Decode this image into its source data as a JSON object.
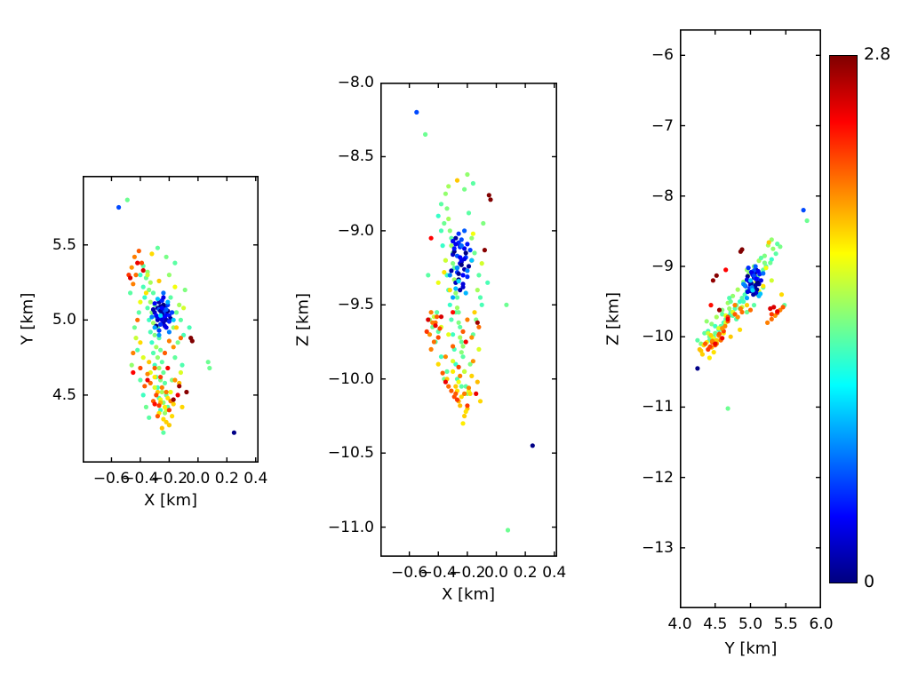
{
  "figure": {
    "background": "#ffffff"
  },
  "chart_data": {
    "type": "scatter",
    "description_title": "",
    "colormap": "jet",
    "point_fields": [
      "x_km",
      "y_km",
      "z_km",
      "value"
    ],
    "panels": [
      {
        "id": "xy",
        "xlabel": "X [km]",
        "ylabel": "Y [km]",
        "xlim": [
          -0.8,
          0.42
        ],
        "ylim": [
          4.05,
          5.96
        ],
        "xticks": [
          -0.6,
          -0.4,
          -0.2,
          0.0,
          0.2,
          0.4
        ],
        "xtick_labels": [
          "−0.6",
          "−0.4",
          "−0.2",
          "0.0",
          "0.2",
          "0.4"
        ],
        "yticks": [
          5.5,
          5.0,
          4.5
        ],
        "ytick_labels": [
          "5.5",
          "5.0",
          "4.5"
        ],
        "x_index": 0,
        "y_index": 1
      },
      {
        "id": "xz",
        "xlabel": "X [km]",
        "ylabel": "Z [km]",
        "xlim": [
          -0.8,
          0.42
        ],
        "ylim": [
          -11.2,
          -8.0
        ],
        "xticks": [
          -0.6,
          -0.4,
          -0.2,
          0.0,
          0.2,
          0.4
        ],
        "xtick_labels": [
          "−0.6",
          "−0.4",
          "−0.2",
          "0.0",
          "0.2",
          "0.4"
        ],
        "yticks": [
          -8.0,
          -8.5,
          -9.0,
          -9.5,
          -10.0,
          -10.5,
          -11.0
        ],
        "ytick_labels": [
          "−8.0",
          "−8.5",
          "−9.0",
          "−9.5",
          "−10.0",
          "−10.5",
          "−11.0"
        ],
        "x_index": 0,
        "y_index": 2
      },
      {
        "id": "yz",
        "xlabel": "Y [km]",
        "ylabel": "Z [km]",
        "xlim": [
          4.0,
          6.0
        ],
        "ylim": [
          -13.86,
          -5.63
        ],
        "xticks": [
          4.0,
          4.5,
          5.0,
          5.5,
          6.0
        ],
        "xtick_labels": [
          "4.0",
          "4.5",
          "5.0",
          "5.5",
          "6.0"
        ],
        "yticks": [
          -6,
          -7,
          -8,
          -9,
          -10,
          -11,
          -12,
          -13
        ],
        "ytick_labels": [
          "−6",
          "−7",
          "−8",
          "−9",
          "−10",
          "−11",
          "−12",
          "−13"
        ],
        "x_index": 1,
        "y_index": 2
      }
    ],
    "colorbar": {
      "min_label": "0",
      "max_label": "2.8",
      "vmin": 0,
      "vmax": 2.8,
      "bottom_color": "#000080",
      "top_color": "#800000"
    },
    "points": [
      [
        -0.38,
        5.36,
        -8.82,
        1.3
      ],
      [
        -0.35,
        5.32,
        -8.75,
        1.45
      ],
      [
        -0.4,
        5.3,
        -8.9,
        1.2
      ],
      [
        -0.36,
        5.28,
        -8.95,
        1.35
      ],
      [
        -0.33,
        5.25,
        -8.7,
        1.5
      ],
      [
        -0.38,
        5.22,
        -9.0,
        1.25
      ],
      [
        -0.34,
        5.2,
        -8.85,
        1.4
      ],
      [
        -0.31,
        5.18,
        -9.05,
        1.3
      ],
      [
        -0.37,
        5.15,
        -9.1,
        1.2
      ],
      [
        -0.33,
        5.12,
        -8.92,
        1.5
      ],
      [
        -0.3,
        5.1,
        -9.15,
        1.35
      ],
      [
        -0.35,
        5.08,
        -9.2,
        1.28
      ],
      [
        -0.32,
        5.05,
        -9.0,
        1.42
      ],
      [
        -0.29,
        5.02,
        -9.25,
        1.3
      ],
      [
        -0.34,
        5.0,
        -9.3,
        1.22
      ],
      [
        -0.31,
        4.98,
        -9.1,
        1.48
      ],
      [
        -0.28,
        4.95,
        -9.35,
        1.33
      ],
      [
        -0.33,
        4.92,
        -9.4,
        1.25
      ],
      [
        -0.3,
        4.9,
        -9.22,
        1.4
      ],
      [
        -0.27,
        4.88,
        -9.45,
        1.3
      ],
      [
        -0.32,
        4.85,
        -9.5,
        1.2
      ],
      [
        -0.29,
        4.82,
        -9.33,
        1.5
      ],
      [
        -0.26,
        4.8,
        -9.55,
        1.35
      ],
      [
        -0.31,
        4.78,
        -9.6,
        1.27
      ],
      [
        -0.28,
        4.75,
        -9.42,
        1.45
      ],
      [
        -0.25,
        4.72,
        -9.65,
        1.3
      ],
      [
        -0.3,
        4.7,
        -9.7,
        1.22
      ],
      [
        -0.27,
        4.68,
        -9.52,
        1.48
      ],
      [
        -0.24,
        4.65,
        -9.75,
        1.33
      ],
      [
        -0.29,
        4.62,
        -9.8,
        1.25
      ],
      [
        -0.26,
        4.6,
        -9.62,
        1.4
      ],
      [
        -0.23,
        4.58,
        -9.85,
        1.3
      ],
      [
        -0.28,
        4.55,
        -9.9,
        1.2
      ],
      [
        -0.25,
        4.52,
        -9.72,
        1.5
      ],
      [
        -0.22,
        4.5,
        -9.95,
        1.35
      ],
      [
        -0.27,
        4.48,
        -10.0,
        1.28
      ],
      [
        -0.24,
        4.45,
        -9.82,
        1.42
      ],
      [
        -0.21,
        4.42,
        -10.05,
        1.3
      ],
      [
        -0.26,
        4.4,
        -9.92,
        1.22
      ],
      [
        -0.23,
        4.38,
        -9.78,
        1.45
      ],
      [
        -0.15,
        5.05,
        -9.15,
        1.35
      ],
      [
        -0.12,
        5.0,
        -9.3,
        1.3
      ],
      [
        -0.17,
        4.95,
        -9.05,
        1.45
      ],
      [
        -0.1,
        4.9,
        -9.5,
        1.25
      ],
      [
        -0.14,
        4.85,
        -9.6,
        1.38
      ],
      [
        -0.19,
        5.15,
        -8.88,
        1.3
      ],
      [
        -0.13,
        5.1,
        -9.4,
        1.5
      ],
      [
        -0.16,
        4.75,
        -9.7,
        1.32
      ],
      [
        -0.11,
        4.7,
        -9.45,
        1.27
      ],
      [
        -0.18,
        4.6,
        -9.9,
        1.4
      ],
      [
        -0.41,
        5.05,
        -9.55,
        1.3
      ],
      [
        -0.44,
        4.95,
        -9.65,
        1.35
      ],
      [
        -0.42,
        4.8,
        -9.75,
        1.28
      ],
      [
        -0.46,
        4.7,
        -9.6,
        1.45
      ],
      [
        -0.4,
        4.6,
        -9.68,
        1.3
      ],
      [
        -0.38,
        4.5,
        -9.85,
        1.22
      ],
      [
        -0.36,
        4.42,
        -10.0,
        1.35
      ],
      [
        -0.34,
        4.35,
        -9.95,
        1.3
      ],
      [
        -0.2,
        4.3,
        -10.1,
        1.42
      ],
      [
        -0.24,
        4.25,
        -10.05,
        1.3
      ],
      [
        0.07,
        4.72,
        -9.5,
        1.35
      ],
      [
        -0.47,
        5.18,
        -9.3,
        1.3
      ],
      [
        -0.09,
        5.2,
        -8.95,
        1.4
      ],
      [
        -0.06,
        4.95,
        -9.35,
        1.25
      ],
      [
        -0.2,
        5.3,
        -8.62,
        1.45
      ],
      [
        -0.16,
        5.38,
        -8.68,
        1.3
      ],
      [
        -0.22,
        5.42,
        -8.72,
        1.38
      ],
      [
        -0.28,
        5.48,
        -9.55,
        1.32
      ],
      [
        -0.3,
        4.55,
        -9.88,
        1.65
      ],
      [
        -0.26,
        4.47,
        -10.02,
        1.7
      ],
      [
        -0.22,
        4.4,
        -9.95,
        1.6
      ],
      [
        -0.33,
        4.65,
        -9.7,
        1.68
      ],
      [
        -0.35,
        5.3,
        -9.2,
        1.62
      ],
      [
        -0.4,
        5.12,
        -9.35,
        1.7
      ],
      [
        -0.12,
        4.65,
        -9.8,
        1.65
      ],
      [
        -0.16,
        5.22,
        -9.02,
        1.72
      ],
      [
        -0.43,
        4.88,
        -9.58,
        1.6
      ],
      [
        -0.19,
        4.52,
        -10.08,
        1.7
      ],
      [
        -0.38,
        4.75,
        -9.65,
        1.66
      ],
      [
        -0.1,
        5.08,
        -9.22,
        1.63
      ],
      [
        -0.24,
        4.34,
        -10.12,
        1.85
      ],
      [
        -0.2,
        4.3,
        -10.2,
        1.9
      ],
      [
        -0.27,
        4.38,
        -10.08,
        1.82
      ],
      [
        -0.22,
        4.32,
        -10.25,
        1.88
      ],
      [
        -0.25,
        4.28,
        -10.18,
        1.92
      ],
      [
        -0.18,
        4.36,
        -10.1,
        1.85
      ],
      [
        -0.23,
        4.42,
        -10.3,
        1.8
      ],
      [
        -0.26,
        4.45,
        -10.15,
        1.95
      ],
      [
        -0.21,
        4.48,
        -10.22,
        1.83
      ],
      [
        -0.28,
        4.52,
        -10.05,
        1.9
      ],
      [
        -0.17,
        4.44,
        -9.98,
        1.87
      ],
      [
        -0.3,
        4.62,
        -9.95,
        1.8
      ],
      [
        -0.13,
        4.58,
        -10.02,
        1.93
      ],
      [
        -0.32,
        5.44,
        -9.4,
        1.85
      ],
      [
        -0.27,
        5.26,
        -8.66,
        1.9
      ],
      [
        -0.36,
        5.18,
        -9.28,
        1.82
      ],
      [
        -0.15,
        4.95,
        -9.55,
        1.88
      ],
      [
        -0.4,
        4.85,
        -9.9,
        1.85
      ],
      [
        -0.34,
        4.72,
        -10.0,
        1.9
      ],
      [
        -0.11,
        4.42,
        -10.15,
        1.86
      ],
      [
        -0.44,
        5.42,
        -9.62,
        2.1
      ],
      [
        -0.41,
        5.46,
        -9.58,
        2.2
      ],
      [
        -0.46,
        5.35,
        -9.7,
        2.05
      ],
      [
        -0.43,
        5.3,
        -9.75,
        2.15
      ],
      [
        -0.39,
        5.38,
        -9.66,
        2.25
      ],
      [
        -0.45,
        5.24,
        -9.8,
        2.1
      ],
      [
        -0.48,
        5.3,
        -9.68,
        2.3
      ],
      [
        -0.2,
        4.86,
        -9.6,
        2.1
      ],
      [
        -0.23,
        4.78,
        -9.68,
        2.2
      ],
      [
        -0.17,
        4.82,
        -9.72,
        2.05
      ],
      [
        -0.33,
        4.58,
        -10.05,
        2.15
      ],
      [
        -0.29,
        4.5,
        -10.12,
        2.25
      ],
      [
        -0.25,
        4.55,
        -9.98,
        2.1
      ],
      [
        -0.31,
        4.46,
        -10.08,
        2.2
      ],
      [
        -0.27,
        4.43,
        -10.14,
        2.3
      ],
      [
        -0.22,
        4.52,
        -10.1,
        2.12
      ],
      [
        -0.35,
        4.64,
        -9.85,
        2.08
      ],
      [
        -0.3,
        4.68,
        -9.78,
        2.18
      ],
      [
        -0.26,
        4.62,
        -9.92,
        2.28
      ],
      [
        -0.19,
        4.46,
        -10.06,
        2.1
      ],
      [
        -0.37,
        4.56,
        -9.96,
        2.2
      ],
      [
        -0.16,
        4.6,
        -9.88,
        2.05
      ],
      [
        -0.42,
        5.0,
        -9.62,
        2.15
      ],
      [
        -0.45,
        4.78,
        -9.55,
        2.1
      ],
      [
        -0.4,
        4.68,
        -9.72,
        2.25
      ],
      [
        -0.12,
        4.88,
        -9.65,
        2.15
      ],
      [
        -0.2,
        4.4,
        -10.18,
        2.3
      ],
      [
        -0.28,
        4.36,
        -10.1,
        2.2
      ],
      [
        -0.42,
        5.38,
        -9.64,
        2.5
      ],
      [
        -0.38,
        5.33,
        -9.58,
        2.55
      ],
      [
        -0.45,
        4.65,
        -9.05,
        2.45
      ],
      [
        -0.35,
        4.6,
        -10.02,
        2.5
      ],
      [
        -0.3,
        4.44,
        -9.55,
        2.42
      ],
      [
        -0.47,
        5.28,
        -9.6,
        2.55
      ],
      [
        -0.21,
        4.68,
        -9.75,
        2.48
      ],
      [
        -0.14,
        4.5,
        -10.1,
        2.5
      ],
      [
        -0.05,
        4.88,
        -8.76,
        2.8
      ],
      [
        -0.04,
        4.86,
        -8.79,
        2.8
      ],
      [
        -0.08,
        4.52,
        -9.13,
        2.78
      ],
      [
        -0.17,
        4.47,
        -9.2,
        2.75
      ],
      [
        -0.13,
        4.56,
        -9.62,
        2.72
      ],
      [
        -0.28,
        5.08,
        -9.05,
        0.1
      ],
      [
        -0.25,
        5.06,
        -9.1,
        0.05
      ],
      [
        -0.22,
        5.04,
        -9.12,
        0.3
      ],
      [
        -0.26,
        5.01,
        -9.08,
        0.45
      ],
      [
        -0.3,
        5.05,
        -9.16,
        0.2
      ],
      [
        -0.24,
        4.98,
        -9.21,
        0.15
      ],
      [
        -0.21,
        5.1,
        -9.18,
        0.5
      ],
      [
        -0.27,
        5.12,
        -9.25,
        0.1
      ],
      [
        -0.23,
        5.02,
        -9.3,
        0.35
      ],
      [
        -0.29,
        4.96,
        -9.14,
        0.0
      ],
      [
        -0.25,
        5.0,
        -9.22,
        0.25
      ],
      [
        -0.2,
        5.03,
        -9.09,
        0.4
      ],
      [
        -0.31,
        5.07,
        -9.27,
        0.12
      ],
      [
        -0.26,
        5.09,
        -9.33,
        0.05
      ],
      [
        -0.24,
        5.05,
        -9.06,
        0.55
      ],
      [
        -0.22,
        4.95,
        -9.19,
        0.3
      ],
      [
        -0.28,
        5.0,
        -9.35,
        0.18
      ],
      [
        -0.25,
        5.13,
        -9.11,
        0.42
      ],
      [
        -0.19,
        5.01,
        -9.24,
        0.08
      ],
      [
        -0.27,
        4.93,
        -9.28,
        0.5
      ],
      [
        -0.23,
        5.08,
        -9.38,
        0.22
      ],
      [
        -0.3,
        5.11,
        -9.07,
        0.33
      ],
      [
        -0.21,
        5.06,
        -9.15,
        0.02
      ],
      [
        -0.26,
        4.97,
        -9.02,
        0.48
      ],
      [
        -0.24,
        5.15,
        -9.2,
        0.28
      ],
      [
        -0.29,
        5.03,
        -9.12,
        0.38
      ],
      [
        -0.22,
        5.0,
        -9.26,
        0.15
      ],
      [
        -0.25,
        5.04,
        -9.4,
        0.1
      ],
      [
        -0.27,
        5.07,
        -9.17,
        0.58
      ],
      [
        -0.2,
        4.99,
        -9.31,
        0.45
      ],
      [
        -0.24,
        5.1,
        -9.23,
        0.0
      ],
      [
        -0.28,
        5.02,
        -9.09,
        0.3
      ],
      [
        -0.18,
        5.05,
        -9.13,
        0.52
      ],
      [
        -0.26,
        5.06,
        -9.29,
        0.07
      ],
      [
        -0.23,
        4.96,
        -9.36,
        0.25
      ],
      [
        -0.25,
        5.08,
        -9.18,
        0.35
      ],
      [
        -0.32,
        5.02,
        -9.3,
        0.7
      ],
      [
        -0.21,
        5.12,
        -9.42,
        0.85
      ],
      [
        -0.27,
        4.9,
        -9.25,
        0.75
      ],
      [
        -0.17,
        5.0,
        -9.2,
        0.9
      ],
      [
        -0.24,
        5.18,
        -9.1,
        0.65
      ],
      [
        -0.3,
        4.95,
        -9.45,
        0.8
      ],
      [
        -0.22,
        5.07,
        -9.0,
        0.6
      ],
      [
        -0.26,
        5.03,
        -9.34,
        0.95
      ],
      [
        -0.2,
        4.92,
        -9.27,
        0.7
      ],
      [
        -0.28,
        5.14,
        -9.39,
        0.88
      ],
      [
        -0.55,
        5.75,
        -8.2,
        0.55
      ],
      [
        -0.49,
        5.8,
        -8.35,
        1.35
      ],
      [
        0.25,
        4.25,
        -10.45,
        0.02
      ],
      [
        0.08,
        4.68,
        -11.02,
        1.35
      ]
    ]
  }
}
